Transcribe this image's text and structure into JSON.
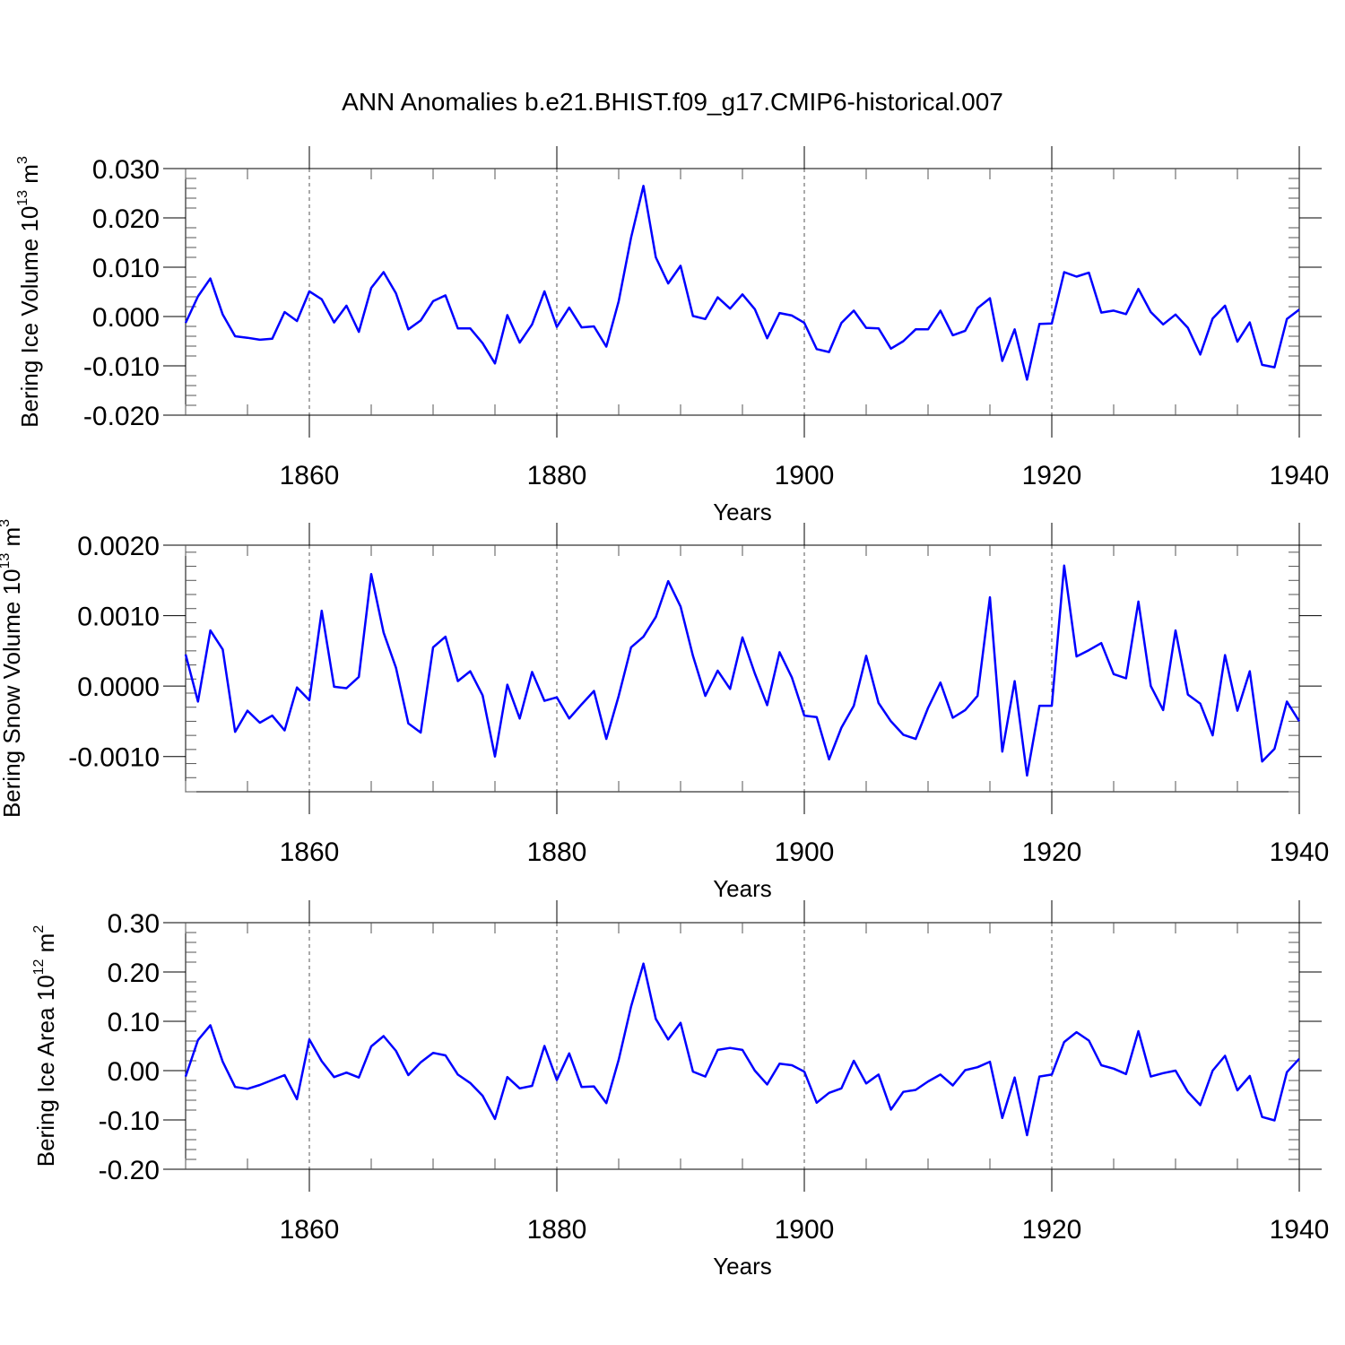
{
  "title": "ANN Anomalies b.e21.BHIST.f09_g17.CMIP6-historical.007",
  "line_color": "#0000ff",
  "chart_data": [
    {
      "type": "line",
      "title": "",
      "xlabel": "Years",
      "ylabel": {
        "main": "Bering Ice Volume 10",
        "exp": "13",
        "unit": " m",
        "unit_exp": "3"
      },
      "xlim": [
        1850,
        1940
      ],
      "ylim": [
        -0.02,
        0.03
      ],
      "xticks": [
        1860,
        1880,
        1900,
        1920,
        1940
      ],
      "yticks": [
        -0.02,
        -0.01,
        0.0,
        0.01,
        0.02,
        0.03
      ],
      "ytick_labels": [
        "-0.020",
        "-0.010",
        "0.000",
        "0.010",
        "0.020",
        "0.030"
      ],
      "x_start": 1850,
      "values": [
        -0.0013,
        0.0041,
        0.0077,
        0.0004,
        -0.004,
        -0.0043,
        -0.0047,
        -0.0045,
        0.0009,
        -0.0009,
        0.0051,
        0.0035,
        -0.0012,
        0.0022,
        -0.0031,
        0.0058,
        0.009,
        0.0047,
        -0.0026,
        -0.0008,
        0.0031,
        0.0043,
        -0.0024,
        -0.0024,
        -0.0054,
        -0.0095,
        0.0003,
        -0.0053,
        -0.0016,
        0.0051,
        -0.0021,
        0.0018,
        -0.0022,
        -0.002,
        -0.0061,
        0.0031,
        0.016,
        0.0265,
        0.012,
        0.0067,
        0.0103,
        0.0001,
        -0.0005,
        0.0039,
        0.0016,
        0.0045,
        0.0015,
        -0.0044,
        0.0007,
        0.0002,
        -0.0013,
        -0.0066,
        -0.0072,
        -0.0013,
        0.0012,
        -0.0023,
        -0.0024,
        -0.0065,
        -0.005,
        -0.0026,
        -0.0026,
        0.0012,
        -0.0038,
        -0.0029,
        0.0017,
        0.0037,
        -0.009,
        -0.0026,
        -0.0128,
        -0.0015,
        -0.0014,
        0.009,
        0.0081,
        0.0089,
        0.0008,
        0.0012,
        0.0005,
        0.0056,
        0.0009,
        -0.0016,
        0.0004,
        -0.0023,
        -0.0077,
        -0.0004,
        0.0022,
        -0.0051,
        -0.0012,
        -0.0098,
        -0.0103,
        -0.0005,
        0.0014
      ]
    },
    {
      "type": "line",
      "title": "",
      "xlabel": "Years",
      "ylabel": {
        "main": "Bering Snow Volume 10",
        "exp": "13",
        "unit": " m",
        "unit_exp": "3"
      },
      "xlim": [
        1850,
        1940
      ],
      "ylim": [
        -0.0015,
        0.002
      ],
      "xticks": [
        1860,
        1880,
        1900,
        1920,
        1940
      ],
      "yticks": [
        -0.001,
        0.0,
        0.001,
        0.002
      ],
      "ytick_labels": [
        "-0.0010",
        "0.0000",
        "0.0010",
        "0.0020"
      ],
      "x_start": 1850,
      "values": [
        0.00045,
        -0.00022,
        0.00079,
        0.00052,
        -0.00065,
        -0.00035,
        -0.00052,
        -0.00042,
        -0.00063,
        -2e-05,
        -0.0002,
        0.00107,
        -1e-05,
        -3e-05,
        0.00013,
        0.00159,
        0.00076,
        0.00026,
        -0.00053,
        -0.00066,
        0.00055,
        0.0007,
        7e-05,
        0.00021,
        -0.00013,
        -0.001,
        2e-05,
        -0.00046,
        0.0002,
        -0.00021,
        -0.00016,
        -0.00046,
        -0.00026,
        -7e-05,
        -0.00075,
        -0.00014,
        0.00055,
        0.0007,
        0.00098,
        0.00149,
        0.00113,
        0.00043,
        -0.00014,
        0.00022,
        -4e-05,
        0.00069,
        0.00018,
        -0.00027,
        0.00048,
        0.00012,
        -0.00042,
        -0.00044,
        -0.00104,
        -0.00059,
        -0.00028,
        0.00043,
        -0.00024,
        -0.0005,
        -0.00069,
        -0.00075,
        -0.00031,
        5e-05,
        -0.00045,
        -0.00034,
        -0.00014,
        0.00126,
        -0.00093,
        7e-05,
        -0.00127,
        -0.00028,
        -0.00028,
        0.00171,
        0.00042,
        0.00051,
        0.00061,
        0.00017,
        0.00011,
        0.0012,
        0.0,
        -0.00034,
        0.00079,
        -0.00012,
        -0.00025,
        -0.0007,
        0.00044,
        -0.00035,
        0.00021,
        -0.00107,
        -0.00089,
        -0.00022,
        -0.0005
      ]
    },
    {
      "type": "line",
      "title": "",
      "xlabel": "Years",
      "ylabel": {
        "main": "Bering Ice Area 10",
        "exp": "12",
        "unit": " m",
        "unit_exp": "2"
      },
      "xlim": [
        1850,
        1940
      ],
      "ylim": [
        -0.2,
        0.3
      ],
      "xticks": [
        1860,
        1880,
        1900,
        1920,
        1940
      ],
      "yticks": [
        -0.2,
        -0.1,
        0.0,
        0.1,
        0.2,
        0.3
      ],
      "ytick_labels": [
        "-0.20",
        "-0.10",
        "0.00",
        "0.10",
        "0.20",
        "0.30"
      ],
      "x_start": 1850,
      "values": [
        -0.012,
        0.062,
        0.092,
        0.018,
        -0.033,
        -0.037,
        -0.029,
        -0.019,
        -0.009,
        -0.058,
        0.063,
        0.019,
        -0.013,
        -0.004,
        -0.014,
        0.049,
        0.07,
        0.04,
        -0.009,
        0.017,
        0.036,
        0.031,
        -0.008,
        -0.025,
        -0.051,
        -0.098,
        -0.013,
        -0.036,
        -0.031,
        0.05,
        -0.019,
        0.035,
        -0.033,
        -0.032,
        -0.066,
        0.022,
        0.13,
        0.217,
        0.105,
        0.063,
        0.097,
        -0.002,
        -0.012,
        0.042,
        0.046,
        0.042,
        0.0,
        -0.028,
        0.014,
        0.011,
        -0.002,
        -0.065,
        -0.045,
        -0.036,
        0.02,
        -0.026,
        -0.008,
        -0.079,
        -0.043,
        -0.039,
        -0.022,
        -0.008,
        -0.03,
        0.001,
        0.007,
        0.018,
        -0.096,
        -0.014,
        -0.131,
        -0.012,
        -0.008,
        0.058,
        0.078,
        0.061,
        0.011,
        0.004,
        -0.007,
        0.08,
        -0.012,
        -0.005,
        0.0,
        -0.043,
        -0.07,
        0.0,
        0.03,
        -0.04,
        -0.011,
        -0.094,
        -0.101,
        -0.003,
        0.024
      ]
    }
  ]
}
